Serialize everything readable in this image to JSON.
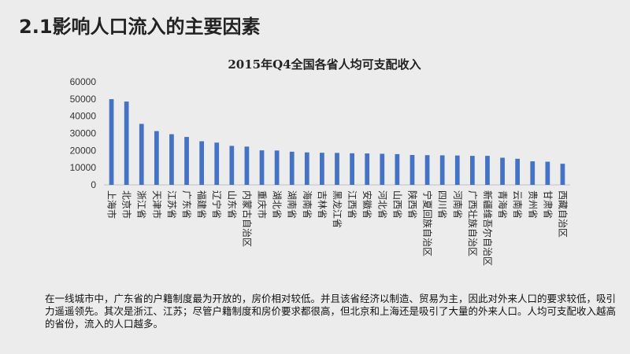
{
  "slide": {
    "title": "2.1影响人口流入的主要因素",
    "body_text": "在一线城市中，广东省的户籍制度最为开放的，房价相对较低。并且该省经济以制造、贸易为主，因此对外来人口的要求较低，吸引力遥遥领先。其次是浙江、江苏；尽管户籍制度和房价要求都很高，但北京和上海还是吸引了大量的外来人口。人均可支配收入越高的省份，流入的人口越多。"
  },
  "chart_data": {
    "type": "bar",
    "title": "2015年Q4全国各省人均可支配收入",
    "xlabel": "",
    "ylabel": "",
    "ylim": [
      0,
      60000
    ],
    "yticks": [
      "0",
      "10000",
      "20000",
      "30000",
      "40000",
      "50000",
      "60000"
    ],
    "grid": false,
    "bar_color": "#4472c4",
    "categories": [
      "上海市",
      "北京市",
      "浙江省",
      "天津市",
      "江苏省",
      "广东省",
      "福建省",
      "辽宁省",
      "山东省",
      "内蒙古自治区",
      "重庆市",
      "湖北省",
      "湖南省",
      "海南省",
      "吉林省",
      "黑龙江省",
      "江西省",
      "安徽省",
      "河北省",
      "山西省",
      "陕西省",
      "宁夏回族自治区",
      "四川省",
      "河南省",
      "广西壮族自治区",
      "新疆维吾尔自治区",
      "青海省",
      "云南省",
      "贵州省",
      "甘肃省",
      "西藏自治区"
    ],
    "values": [
      49900,
      48500,
      35500,
      31300,
      29500,
      27900,
      25400,
      24600,
      22700,
      22300,
      20100,
      20000,
      19300,
      18900,
      18700,
      18600,
      18400,
      18300,
      18100,
      17900,
      17400,
      17300,
      17200,
      17100,
      16900,
      16900,
      15800,
      15200,
      13700,
      13500,
      12300
    ]
  }
}
